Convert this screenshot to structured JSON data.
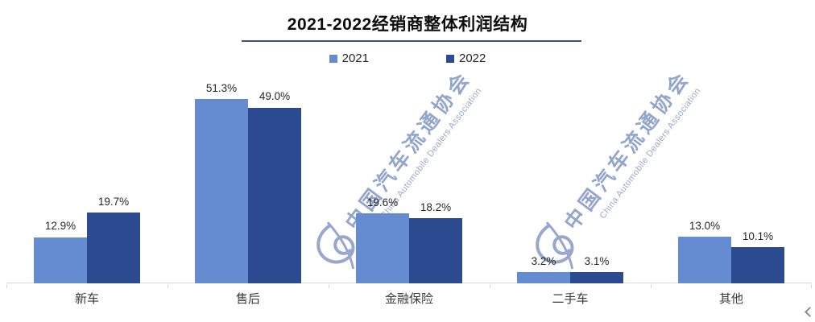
{
  "title": "2021-2022经销商整体利润结构",
  "legend": {
    "items": [
      {
        "label": "2021",
        "color": "#658CD0"
      },
      {
        "label": "2022",
        "color": "#2B4A90"
      }
    ]
  },
  "chart_data": {
    "type": "bar",
    "categories": [
      "新车",
      "售后",
      "金融保险",
      "二手车",
      "其他"
    ],
    "series": [
      {
        "name": "2021",
        "color": "#658CD0",
        "values": [
          12.9,
          51.3,
          19.6,
          3.2,
          13.0
        ]
      },
      {
        "name": "2022",
        "color": "#2B4A90",
        "values": [
          19.7,
          49.0,
          18.2,
          3.1,
          10.1
        ]
      }
    ],
    "value_suffix": "%",
    "value_decimals": 1,
    "title": "2021-2022经销商整体利润结构",
    "xlabel": "",
    "ylabel": "",
    "ylim": [
      0,
      56.5
    ],
    "grid": false,
    "legend_position": "top",
    "data_labels": true
  },
  "watermark": {
    "cn": "中国汽车流通协会",
    "en": "China Automobile Dealers Association",
    "color": "#93A5CB",
    "logo_icon": "cada-swirl-logo"
  },
  "icons": {
    "scroll_chevron": "chevron-left"
  },
  "colors": {
    "axis": "#d9d9d9",
    "title_underline": "#44546a",
    "label_text": "#262626",
    "category_text": "#3a3a3a"
  }
}
